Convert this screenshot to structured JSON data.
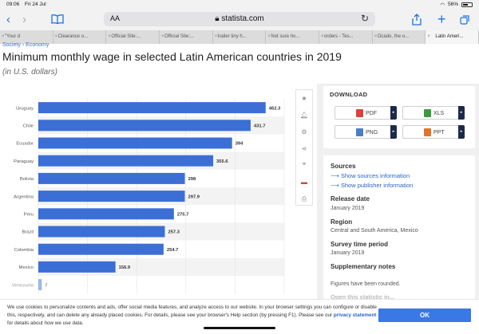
{
  "status": {
    "time": "09:06",
    "date": "Fri 24 Jul",
    "battery": "56%"
  },
  "browser": {
    "aa_label": "AA",
    "url": "statista.com",
    "tabs": [
      {
        "label": "\"Your d",
        "active": false
      },
      {
        "label": "Clearance o...",
        "active": false
      },
      {
        "label": "Official Site:...",
        "active": false
      },
      {
        "label": "Official Site:...",
        "active": false
      },
      {
        "label": "trailer tiny h...",
        "active": false
      },
      {
        "label": "Not sure ho...",
        "active": false
      },
      {
        "label": "orders - Tes...",
        "active": false
      },
      {
        "label": "Ocado, the o...",
        "active": false
      },
      {
        "label": "Latin Ameri...",
        "active": true
      }
    ]
  },
  "page": {
    "breadcrumb": "Society › Economy",
    "title": "Minimum monthly wage in selected Latin American countries in 2019",
    "subtitle": "(in U.S. dollars)"
  },
  "chart_data": {
    "type": "bar",
    "orientation": "horizontal",
    "categories": [
      "Uruguay",
      "Chile",
      "Ecuador",
      "Paraguay",
      "Bolivia",
      "Argentina",
      "Peru",
      "Brazil",
      "Colombia",
      "Mexico",
      "Venezuela"
    ],
    "values": [
      462.3,
      431.7,
      394,
      355.6,
      298,
      297.9,
      275.7,
      257.3,
      254.7,
      156.9,
      7
    ],
    "value_labels": [
      "462.3",
      "431.7",
      "394",
      "355.6",
      "298",
      "297.9",
      "275.7",
      "257.3",
      "254.7",
      "156.9",
      "7"
    ],
    "xlim": [
      0,
      500
    ],
    "bar_color": "#3c6fd6",
    "grid": true,
    "legend": "none"
  },
  "tools": [
    "star-icon",
    "bell-icon",
    "gear-icon",
    "share-icon",
    "quote-icon",
    "flag-icon",
    "print-icon"
  ],
  "download": {
    "title": "DOWNLOAD",
    "buttons": [
      {
        "label": "PDF",
        "color": "#d9443b"
      },
      {
        "label": "XLS",
        "color": "#3a9a3f"
      },
      {
        "label": "PNG",
        "color": "#4a7ec7"
      },
      {
        "label": "PPT",
        "color": "#e0742b"
      }
    ]
  },
  "info": {
    "sources_heading": "Sources",
    "show_sources": "Show sources information",
    "show_publisher": "Show publisher information",
    "release_heading": "Release date",
    "release_value": "January 2019",
    "region_heading": "Region",
    "region_value": "Central and South America, Mexico",
    "survey_heading": "Survey time period",
    "survey_value": "January 2019",
    "supp_heading": "Supplementary notes",
    "supp_value": "Figures have been rounded.",
    "open_stat": "Open this statistic in..."
  },
  "cookie": {
    "text_1": "We use cookies to personalize contents and ads, offer social media features, and analyze access to our website. In your browser settings you can configure or disable this, respectively, and can delete any already placed cookies. For details, please see your browser's Help section (by pressing F1).",
    "text_2_before": "Please see our ",
    "link": "privacy statement",
    "text_2_after": " for details about how we use data.",
    "ok_label": "OK"
  }
}
